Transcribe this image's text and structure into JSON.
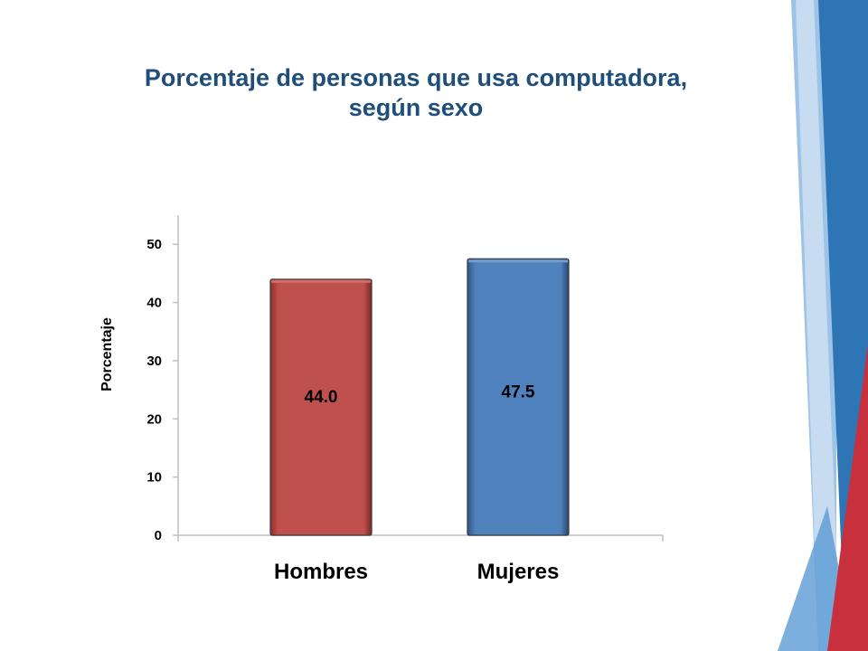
{
  "chart_data": {
    "type": "bar",
    "title": "Porcentaje de personas que usa computadora, según sexo",
    "title_lines": [
      "Porcentaje de personas que usa computadora,",
      "según sexo"
    ],
    "categories": [
      "Hombres",
      "Mujeres"
    ],
    "values": [
      44.0,
      47.5
    ],
    "data_labels": [
      "44.0",
      "47.5"
    ],
    "ylabel": "Porcentaje",
    "xlabel": "",
    "ylim": [
      0,
      55
    ],
    "yticks": [
      0,
      10,
      20,
      30,
      40,
      50
    ],
    "grid": false,
    "legend": "none",
    "colors": [
      "#c0504d",
      "#4f81bd"
    ]
  },
  "theme": {
    "title_color": "#1f4e79",
    "decor_colors": [
      "#9dc3e6",
      "#2e75b6",
      "#d9e6f5",
      "#c9303e"
    ]
  }
}
